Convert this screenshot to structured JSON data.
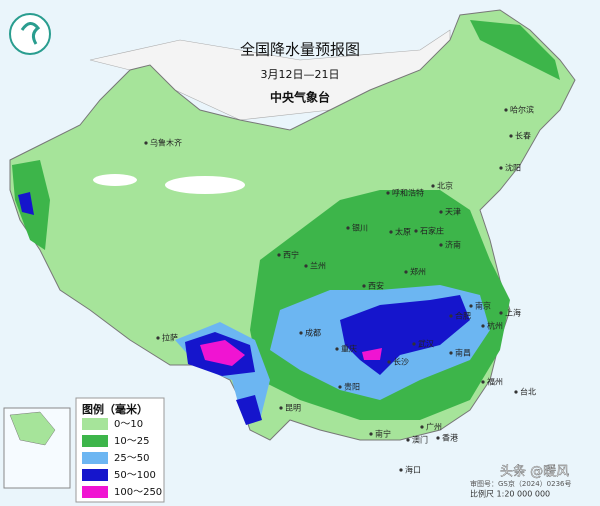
{
  "header": {
    "title": "全国降水量预报图",
    "date_range": "3月12日—21日",
    "agency": "中央气象台"
  },
  "legend": {
    "title": "图例（毫米）",
    "items": [
      {
        "label": "0～10",
        "color": "#a6e49a"
      },
      {
        "label": "10～25",
        "color": "#3db54a"
      },
      {
        "label": "25～50",
        "color": "#6cb6f2"
      },
      {
        "label": "50～100",
        "color": "#1515cc"
      },
      {
        "label": "100～250",
        "color": "#f014d2"
      }
    ]
  },
  "cities": [
    "乌鲁木齐",
    "哈尔滨",
    "长春",
    "沈阳",
    "呼和浩特",
    "北京",
    "天津",
    "银川",
    "太原",
    "石家庄",
    "济南",
    "西宁",
    "兰州",
    "郑州",
    "西安",
    "南京",
    "上海",
    "合肥",
    "杭州",
    "成都",
    "重庆",
    "武汉",
    "拉萨",
    "长沙",
    "南昌",
    "贵阳",
    "福州",
    "昆明",
    "台北",
    "南宁",
    "广州",
    "澳门",
    "香港",
    "海口"
  ],
  "footer": {
    "scale": "比例尺 1:20 000 000",
    "approval": "审图号：GS京（2024）0236号",
    "watermark": "头条 @暖风"
  }
}
